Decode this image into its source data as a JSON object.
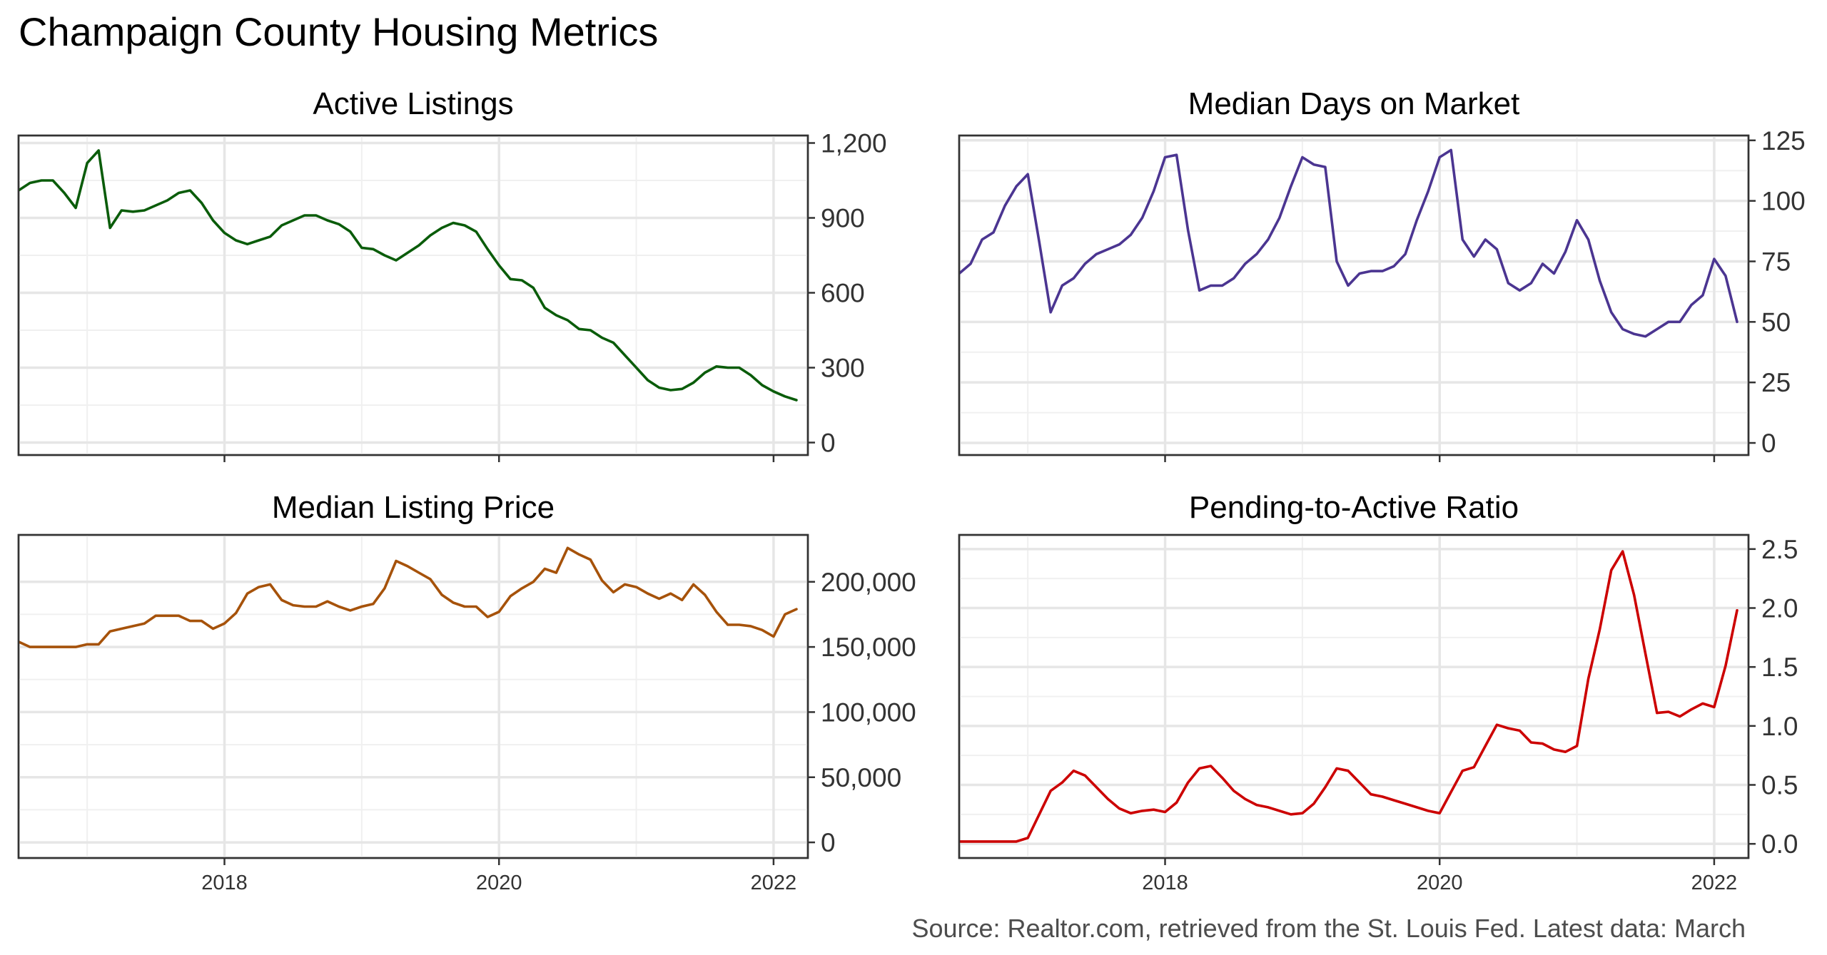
{
  "title": "Champaign County Housing Metrics",
  "source": "Source: Realtor.com, retrieved from the St. Louis Fed. Latest data: March",
  "chart_data": [
    {
      "type": "line",
      "id": "active",
      "title": "Active Listings",
      "color": "#0a5c0a",
      "xlim": [
        2016.5,
        2022.25
      ],
      "ylim": [
        -50,
        1230
      ],
      "yticks": [
        0,
        300,
        600,
        900,
        1200
      ],
      "ytick_labels": [
        "0",
        "300",
        "600",
        "900",
        "1,200"
      ],
      "xticks": [
        2018,
        2020,
        2022
      ],
      "xtick_labels": [
        "2018",
        "2020",
        "2022"
      ],
      "show_x_labels": false,
      "grid": true,
      "start": [
        2016,
        7
      ],
      "values": [
        1010,
        1040,
        1050,
        1050,
        1000,
        940,
        1120,
        1170,
        860,
        930,
        925,
        930,
        950,
        970,
        1000,
        1010,
        960,
        890,
        840,
        810,
        795,
        810,
        825,
        870,
        890,
        910,
        910,
        890,
        875,
        845,
        780,
        775,
        750,
        730,
        760,
        790,
        830,
        860,
        880,
        870,
        845,
        775,
        710,
        655,
        650,
        620,
        540,
        510,
        490,
        455,
        450,
        420,
        400,
        350,
        300,
        250,
        220,
        210,
        215,
        240,
        280,
        305,
        300,
        300,
        270,
        230,
        205,
        185,
        170
      ]
    },
    {
      "type": "line",
      "id": "days",
      "title": "Median Days on Market",
      "color": "#4b3591",
      "xlim": [
        2016.5,
        2022.25
      ],
      "ylim": [
        -5,
        127
      ],
      "yticks": [
        0,
        25,
        50,
        75,
        100,
        125
      ],
      "ytick_labels": [
        "0",
        "25",
        "50",
        "75",
        "100",
        "125"
      ],
      "xticks": [
        2018,
        2020,
        2022
      ],
      "xtick_labels": [
        "2018",
        "2020",
        "2022"
      ],
      "show_x_labels": false,
      "grid": true,
      "start": [
        2016,
        7
      ],
      "values": [
        70,
        74,
        84,
        87,
        98,
        106,
        111,
        83,
        54,
        65,
        68,
        74,
        78,
        80,
        82,
        86,
        93,
        104,
        118,
        119,
        88,
        63,
        65,
        65,
        68,
        74,
        78,
        84,
        93,
        106,
        118,
        115,
        114,
        75,
        65,
        70,
        71,
        71,
        73,
        78,
        92,
        104,
        118,
        121,
        84,
        77,
        84,
        80,
        66,
        63,
        66,
        74,
        70,
        79,
        92,
        84,
        67,
        54,
        47,
        45,
        44,
        47,
        50,
        50,
        57,
        61,
        76,
        69,
        50
      ]
    },
    {
      "type": "line",
      "id": "price",
      "title": "Median Listing Price",
      "color": "#a6520a",
      "xlim": [
        2016.5,
        2022.25
      ],
      "ylim": [
        -12000,
        236000
      ],
      "yticks": [
        0,
        50000,
        100000,
        150000,
        200000
      ],
      "ytick_labels": [
        "0",
        "50,000",
        "100,000",
        "150,000",
        "200,000"
      ],
      "xticks": [
        2018,
        2020,
        2022
      ],
      "xtick_labels": [
        "2018",
        "2020",
        "2022"
      ],
      "show_x_labels": true,
      "grid": true,
      "start": [
        2016,
        7
      ],
      "values": [
        154000,
        150000,
        150000,
        150000,
        150000,
        150000,
        152000,
        152000,
        162000,
        164000,
        166000,
        168000,
        174000,
        174000,
        174000,
        170000,
        170000,
        164000,
        168000,
        176000,
        191000,
        196000,
        198000,
        186000,
        182000,
        181000,
        181000,
        185000,
        181000,
        178000,
        181000,
        183000,
        195000,
        216000,
        212000,
        207000,
        202000,
        190000,
        184000,
        181000,
        181000,
        173000,
        177000,
        189000,
        195000,
        200000,
        210000,
        207000,
        226000,
        221000,
        217000,
        201000,
        192000,
        198000,
        196000,
        191000,
        187000,
        191000,
        186000,
        198000,
        190000,
        177000,
        167000,
        167000,
        166000,
        163000,
        158000,
        175000,
        179000
      ]
    },
    {
      "type": "line",
      "id": "ratio",
      "title": "Pending-to-Active Ratio",
      "color": "#cc0000",
      "xlim": [
        2016.5,
        2022.25
      ],
      "ylim": [
        -0.12,
        2.62
      ],
      "yticks": [
        0.0,
        0.5,
        1.0,
        1.5,
        2.0,
        2.5
      ],
      "ytick_labels": [
        "0.0",
        "0.5",
        "1.0",
        "1.5",
        "2.0",
        "2.5"
      ],
      "xticks": [
        2018,
        2020,
        2022
      ],
      "xtick_labels": [
        "2018",
        "2020",
        "2022"
      ],
      "show_x_labels": true,
      "grid": true,
      "start": [
        2016,
        7
      ],
      "values": [
        0.02,
        0.02,
        0.02,
        0.02,
        0.02,
        0.02,
        0.05,
        0.25,
        0.45,
        0.52,
        0.62,
        0.58,
        0.48,
        0.38,
        0.3,
        0.26,
        0.28,
        0.29,
        0.27,
        0.35,
        0.52,
        0.64,
        0.66,
        0.56,
        0.45,
        0.38,
        0.33,
        0.31,
        0.28,
        0.25,
        0.26,
        0.34,
        0.48,
        0.64,
        0.62,
        0.52,
        0.42,
        0.4,
        0.37,
        0.34,
        0.31,
        0.28,
        0.26,
        0.44,
        0.62,
        0.65,
        0.83,
        1.01,
        0.98,
        0.96,
        0.86,
        0.85,
        0.8,
        0.78,
        0.83,
        1.4,
        1.82,
        2.32,
        2.48,
        2.11,
        1.61,
        1.11,
        1.12,
        1.08,
        1.14,
        1.19,
        1.16,
        1.51,
        1.98
      ]
    }
  ]
}
